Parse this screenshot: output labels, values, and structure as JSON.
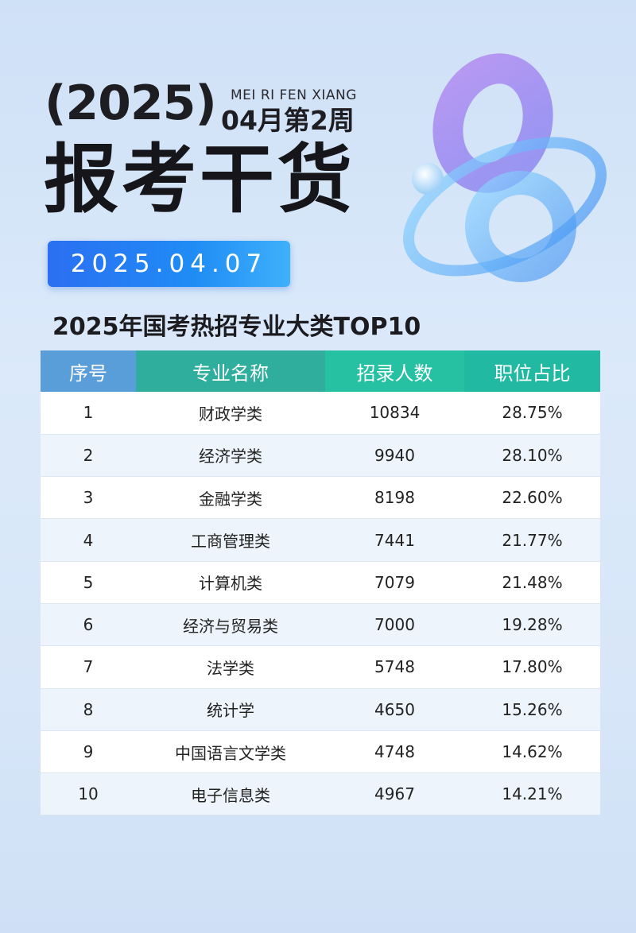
{
  "header": {
    "year": "(2025)",
    "pinyin": "MEI RI FEN XIANG",
    "week": "04月第2周",
    "title": "报考干货",
    "date": "2025.04.07"
  },
  "table": {
    "title": "2025年国考热招专业大类TOP10",
    "columns": [
      "序号",
      "专业名称",
      "招录人数",
      "职位占比"
    ],
    "rows": [
      {
        "rank": "1",
        "major": "财政学类",
        "count": "10834",
        "share": "28.75%"
      },
      {
        "rank": "2",
        "major": "经济学类",
        "count": "9940",
        "share": "28.10%"
      },
      {
        "rank": "3",
        "major": "金融学类",
        "count": "8198",
        "share": "22.60%"
      },
      {
        "rank": "4",
        "major": "工商管理类",
        "count": "7441",
        "share": "21.77%"
      },
      {
        "rank": "5",
        "major": "计算机类",
        "count": "7079",
        "share": "21.48%"
      },
      {
        "rank": "6",
        "major": "经济与贸易类",
        "count": "7000",
        "share": "19.28%"
      },
      {
        "rank": "7",
        "major": "法学类",
        "count": "5748",
        "share": "17.80%"
      },
      {
        "rank": "8",
        "major": "统计学",
        "count": "4650",
        "share": "15.26%"
      },
      {
        "rank": "9",
        "major": "中国语言文学类",
        "count": "4748",
        "share": "14.62%"
      },
      {
        "rank": "10",
        "major": "电子信息类",
        "count": "4967",
        "share": "14.21%"
      }
    ]
  },
  "colors": {
    "date_pill": "#2b6ff2",
    "header_rank": "#5a9ed9",
    "header_other": "#26c0a3",
    "stripe": "#eef4fb"
  }
}
